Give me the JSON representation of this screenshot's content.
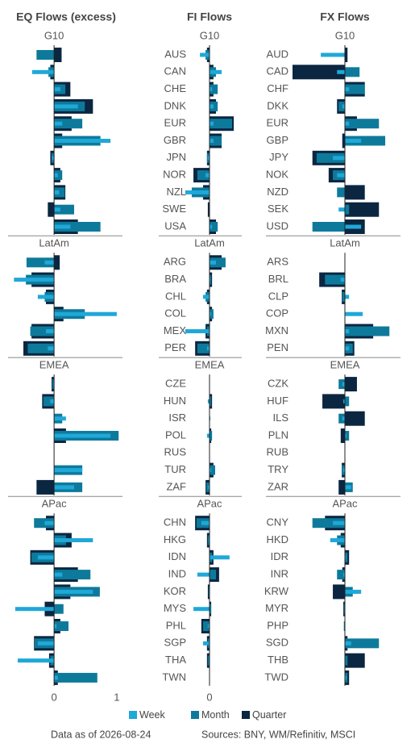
{
  "chart_data": [
    {
      "type": "bar",
      "title": "EQ Flows (excess)",
      "xlim": [
        -0.67,
        1.04
      ],
      "xticks": [
        0,
        1
      ],
      "groups": [
        {
          "name": "G10",
          "categories": [
            null,
            null,
            null,
            null,
            null,
            null,
            null,
            null,
            null,
            null,
            null
          ]
        },
        {
          "name": "LatAm",
          "categories": [
            null,
            null,
            null,
            null,
            null,
            null
          ]
        },
        {
          "name": "EMEA",
          "categories": [
            null,
            null,
            null,
            null,
            null,
            null,
            null
          ]
        },
        {
          "name": "APac",
          "categories": [
            null,
            null,
            null,
            null,
            null,
            null,
            null,
            null,
            null,
            null
          ]
        }
      ],
      "series": [
        {
          "name": "Week",
          "color": "#1fa8d8",
          "values": [
            0,
            -0.35,
            0.1,
            0.38,
            0.13,
            0.9,
            -0.03,
            0.06,
            0.08,
            0.1,
            0.26,
            -0.15,
            -0.64,
            -0.26,
            1.0,
            -0.13,
            -0.1,
            -0.01,
            -0.06,
            0.19,
            0.9,
            null,
            0.45,
            0.32,
            -0.15,
            0.62,
            -0.26,
            0.13,
            0.62,
            -0.62,
            0.04,
            -0.26,
            -0.58,
            0.06
          ]
        },
        {
          "name": "Month",
          "color": "#0e7a9b",
          "values": [
            -0.28,
            -0.09,
            0.18,
            0.49,
            0.45,
            0.74,
            -0.04,
            0.13,
            0.17,
            0.32,
            0.74,
            -0.44,
            -0.45,
            -0.15,
            0.49,
            -0.38,
            -0.42,
            -0.03,
            -0.17,
            0.13,
            1.03,
            null,
            0.45,
            0.45,
            -0.32,
            0.19,
            -0.36,
            0.58,
            0.73,
            0.15,
            0.23,
            -0.31,
            -0.06,
            0.69
          ]
        },
        {
          "name": "Quarter",
          "color": "#0b2641",
          "values": [
            0.12,
            -0.06,
            0.26,
            0.62,
            0.28,
            0.13,
            -0.06,
            0.1,
            0.18,
            -0.1,
            0.38,
            0.09,
            -0.36,
            -0.13,
            0.15,
            -0.36,
            -0.49,
            -0.04,
            -0.19,
            0,
            0.19,
            null,
            0,
            -0.28,
            -0.13,
            0.28,
            -0.38,
            0.38,
            0.26,
            -0.15,
            0.1,
            -0.32,
            -0.08,
            0.06
          ]
        }
      ]
    },
    {
      "type": "bar",
      "title": "FI Flows",
      "xlim": [
        -1,
        1
      ],
      "xticks": [
        0
      ],
      "groups": [
        {
          "name": "G10",
          "categories": [
            "AUS",
            "CAN",
            "CHE",
            "DNK",
            "EUR",
            "GBR",
            "JPN",
            "NOR",
            "NZL",
            "SWE",
            "USA"
          ]
        },
        {
          "name": "LatAm",
          "categories": [
            "ARG",
            "BRA",
            "CHL",
            "COL",
            "MEX",
            "PER"
          ]
        },
        {
          "name": "EMEA",
          "categories": [
            "CZE",
            "HUN",
            "ISR",
            "POL",
            "RUS",
            "TUR",
            "ZAF"
          ]
        },
        {
          "name": "APac",
          "categories": [
            "CHN",
            "HKG",
            "IDN",
            "IND",
            "KOR",
            "MYS",
            "PHL",
            "SGP",
            "THA",
            "TWN"
          ]
        }
      ],
      "series": [
        {
          "values": [
            -0.34,
            0.43,
            0.09,
            0.14,
            0.14,
            0.14,
            -0.06,
            -0.14,
            -0.86,
            0,
            0.09,
            0.23,
            0.03,
            -0.23,
            0.06,
            -0.86,
            -0.09,
            null,
            -0.06,
            0.03,
            -0.09,
            null,
            0.06,
            -0.06,
            -0.29,
            -0.03,
            0.71,
            -0.43,
            0,
            -0.57,
            -0.06,
            -0.23,
            0,
            null
          ]
        },
        {
          "values": [
            -0.14,
            0.23,
            0.29,
            0.29,
            0.8,
            0.43,
            -0.09,
            -0.43,
            -0.63,
            0,
            0.29,
            0.57,
            0.06,
            -0.14,
            0.14,
            -0.09,
            -0.43,
            null,
            0.06,
            0,
            0.09,
            null,
            0.2,
            -0.11,
            -0.46,
            -0.06,
            0.09,
            0.23,
            -0.03,
            0.06,
            -0.23,
            -0.06,
            -0.06,
            null
          ]
        },
        {
          "values": [
            -0.09,
            0.14,
            0.14,
            0.23,
            0.86,
            0.43,
            -0.09,
            -0.57,
            -0.23,
            -0.06,
            0.23,
            0.43,
            0.09,
            -0.09,
            0.09,
            -0.14,
            -0.51,
            null,
            0.09,
            0,
            0.06,
            null,
            0.14,
            -0.14,
            -0.51,
            -0.09,
            0.14,
            0.34,
            -0.06,
            0.06,
            -0.29,
            -0.09,
            -0.09,
            null
          ]
        }
      ]
    },
    {
      "type": "bar",
      "title": "FX Flows",
      "xlim": [
        -1,
        1
      ],
      "groups": [
        {
          "name": "G10",
          "categories": [
            "AUD",
            "CAD",
            "CHF",
            "DKK",
            "EUR",
            "GBP",
            "JPY",
            "NOK",
            "NZD",
            "SEK",
            "USD"
          ]
        },
        {
          "name": "LatAm",
          "categories": [
            "ARS",
            "BRL",
            "CLP",
            "COP",
            "MXN",
            "PEN"
          ]
        },
        {
          "name": "EMEA",
          "categories": [
            "CZK",
            "HUF",
            "ILS",
            "PLN",
            "RUB",
            "TRY",
            "ZAR"
          ]
        },
        {
          "name": "APac",
          "categories": [
            "CNY",
            "HKD",
            "IDR",
            "INR",
            "KRW",
            "MYR",
            "PHP",
            "SGD",
            "THB",
            "TWD"
          ]
        }
      ],
      "series": [
        {
          "values": [
            -0.46,
            -0.15,
            0.08,
            -0.05,
            0.08,
            0.31,
            -0.23,
            -0.15,
            0,
            -0.12,
            0.31,
            null,
            -0.08,
            0.08,
            0.34,
            0.08,
            0.08,
            -0.05,
            -0.03,
            -0.05,
            0.03,
            null,
            -0.03,
            0.12,
            -0.23,
            -0.28,
            0.02,
            -0.03,
            0.31,
            0,
            0,
            0.12,
            0,
            0.03
          ]
        },
        {
          "values": [
            0,
            0.28,
            0.38,
            -0.12,
            0.65,
            0.77,
            -0.54,
            -0.23,
            -0.15,
            0.08,
            -0.62,
            null,
            -0.38,
            -0.05,
            0,
            0.85,
            0.15,
            -0.12,
            0.08,
            -0.12,
            0.08,
            null,
            -0.06,
            0.15,
            -0.62,
            -0.15,
            0.05,
            -0.15,
            0.15,
            -0.02,
            -0.02,
            0.65,
            0.05,
            0.05
          ]
        },
        {
          "values": [
            0.05,
            -1,
            0.38,
            -0.15,
            0.23,
            -0.05,
            -0.62,
            -0.31,
            0.38,
            0.65,
            0.38,
            null,
            -0.49,
            -0.06,
            0,
            0.54,
            0.18,
            0.23,
            -0.43,
            0.38,
            -0.08,
            null,
            -0.06,
            -0.12,
            -0.38,
            -0.08,
            0.08,
            -0.05,
            -0.23,
            -0.03,
            0,
            0.05,
            0.38,
            0.08
          ]
        }
      ]
    }
  ],
  "footer": {
    "date_note": "Data as of 2026-08-24",
    "sources": "Sources:  BNY, WM/Refinitiv, MSCI"
  }
}
